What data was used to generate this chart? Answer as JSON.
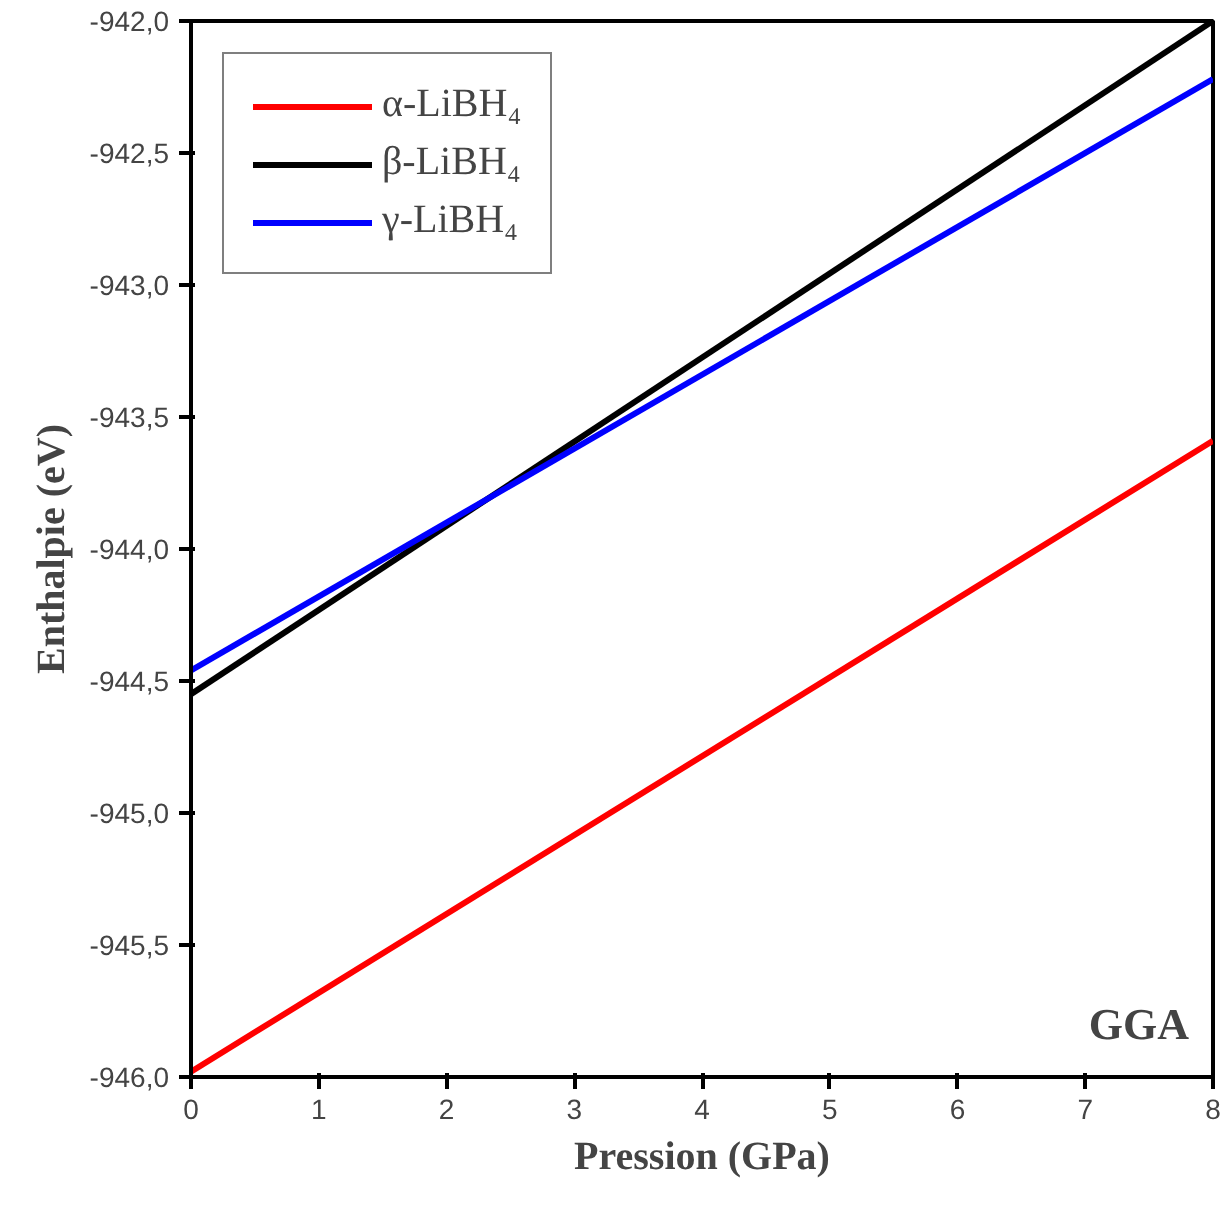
{
  "chart_data": {
    "type": "line",
    "xlabel": "Pression (GPa)",
    "ylabel": "Enthalpie (eV)",
    "x": [
      0,
      8
    ],
    "series": [
      {
        "name": "α-LiBH₄",
        "color": "#ff0000",
        "values": [
          -945.98,
          -943.59
        ]
      },
      {
        "name": "β-LiBH₄",
        "color": "#000000",
        "values": [
          -944.55,
          -942.0
        ]
      },
      {
        "name": "γ-LiBH₄",
        "color": "#0000ff",
        "values": [
          -944.46,
          -942.22
        ]
      }
    ],
    "xlim": [
      0,
      8
    ],
    "ylim": [
      -946.0,
      -942.0
    ],
    "xticks": [
      0,
      1,
      2,
      3,
      4,
      5,
      6,
      7,
      8
    ],
    "yticks": [
      {
        "value": -946.0,
        "label": "-946,0"
      },
      {
        "value": -945.5,
        "label": "-945,5"
      },
      {
        "value": -945.0,
        "label": "-945,0"
      },
      {
        "value": -944.5,
        "label": "-944,5"
      },
      {
        "value": -944.0,
        "label": "-944,0"
      },
      {
        "value": -943.5,
        "label": "-943,5"
      },
      {
        "value": -943.0,
        "label": "-943,0"
      },
      {
        "value": -942.5,
        "label": "-942,5"
      },
      {
        "value": -942.0,
        "label": "-942,0"
      }
    ],
    "annotations": [
      "GGA"
    ],
    "legend": "top left",
    "grid": false,
    "line_style": "solid",
    "marker": "none"
  }
}
